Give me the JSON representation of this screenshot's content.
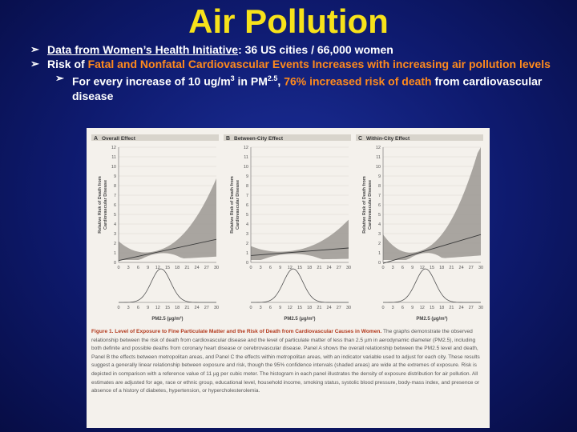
{
  "slide": {
    "title": "Air Pollution",
    "bullet1": {
      "link": "Data from Women’s Health Initiative",
      "rest": ": 36 US cities / 66,000 women"
    },
    "bullet2": {
      "part1": "Risk of ",
      "highlight": "Fatal and Nonfatal Cardiovascular Events Increases with increasing air pollution levels"
    },
    "bullet3": {
      "part1": "For every increase of 10 ug/m",
      "sup": "3",
      "part2": " in PM",
      "sub": "2.5",
      "sep": ", ",
      "highlight": "76% increased risk of death",
      "part3": " from cardiovascular disease"
    }
  },
  "figure": {
    "panels": [
      {
        "label": "A",
        "title": "Overall Effect",
        "rise": 1.4,
        "band": 6.2
      },
      {
        "label": "B",
        "title": "Between-City Effect",
        "rise": 0.5,
        "band": 2.8
      },
      {
        "label": "C",
        "title": "Within-City Effect",
        "rise": 1.9,
        "band": 9.5
      }
    ],
    "y_axis_label": [
      "Relative Risk of Death from",
      "Cardiovascular Disease"
    ],
    "y_ticks": [
      "12",
      "11",
      "10",
      "9",
      "8",
      "7",
      "6",
      "5",
      "4",
      "3",
      "2",
      "1",
      "0"
    ],
    "x_ticks": [
      "0",
      "3",
      "6",
      "9",
      "12",
      "15",
      "18",
      "21",
      "24",
      "27",
      "30"
    ],
    "x_axis_label": "PM2.5 (µg/m³)",
    "caption_title": "Figure 1. Level of Exposure to Fine Particulate Matter and the Risk of Death from Cardiovascular Causes in Women.",
    "caption_body": "The graphs demonstrate the observed relationship between the risk of death from cardiovascular disease and the level of particulate matter of less than 2.5 µm in aerodynamic diameter (PM2.5), including both definite and possible deaths from coronary heart disease or cerebrovascular disease. Panel A shows the overall relationship between the PM2.5 level and death, Panel B the effects between metropolitan areas, and Panel C the effects within metropolitan areas, with an indicator variable used to adjust for each city. These results suggest a generally linear relationship between exposure and risk, though the 95% confidence intervals (shaded areas) are wide at the extremes of exposure. Risk is depicted in comparison with a reference value of 11 µg per cubic meter. The histogram in each panel illustrates the density of exposure distribution for air pollution. All estimates are adjusted for age, race or ethnic group, educational level, household income, smoking status, systolic blood pressure, body-mass index, and presence or absence of a history of diabetes, hypertension, or hypercholesterolemia."
  }
}
